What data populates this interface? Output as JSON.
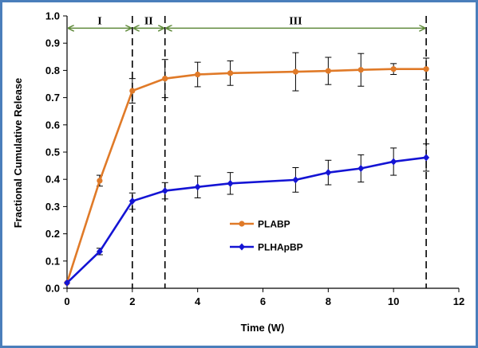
{
  "chart_data": {
    "type": "line",
    "title": "",
    "xlabel": "Time (W)",
    "ylabel": "Fractional Cumulative Release",
    "xlim": [
      0,
      12
    ],
    "ylim": [
      0,
      1.0
    ],
    "x_ticks": [
      "0",
      "2",
      "4",
      "6",
      "8",
      "10",
      "12"
    ],
    "y_ticks": [
      "0.0",
      "0.1",
      "0.2",
      "0.3",
      "0.4",
      "0.5",
      "0.6",
      "0.7",
      "0.8",
      "0.9",
      "1.0"
    ],
    "grid": false,
    "legend_position": "center",
    "series": [
      {
        "name": "PLABP",
        "color": "#e07a28",
        "marker": "circle",
        "x": [
          0,
          1,
          2,
          3,
          4,
          5,
          7,
          8,
          9,
          10,
          11
        ],
        "y": [
          0.02,
          0.395,
          0.725,
          0.77,
          0.785,
          0.79,
          0.795,
          0.798,
          0.802,
          0.805,
          0.805
        ],
        "err": [
          0.0,
          0.02,
          0.045,
          0.07,
          0.045,
          0.045,
          0.07,
          0.05,
          0.06,
          0.02,
          0.04
        ]
      },
      {
        "name": "PLHApBP",
        "color": "#1414d4",
        "marker": "diamond",
        "x": [
          0,
          1,
          2,
          3,
          4,
          5,
          7,
          8,
          9,
          10,
          11
        ],
        "y": [
          0.02,
          0.135,
          0.32,
          0.358,
          0.372,
          0.385,
          0.398,
          0.425,
          0.44,
          0.465,
          0.48
        ],
        "err": [
          0.0,
          0.012,
          0.03,
          0.03,
          0.04,
          0.04,
          0.045,
          0.045,
          0.05,
          0.05,
          0.05
        ]
      }
    ],
    "phase_lines_x": [
      2,
      3,
      11
    ],
    "phases": [
      {
        "label": "I",
        "from": 0,
        "to": 2
      },
      {
        "label": "II",
        "from": 2,
        "to": 3
      },
      {
        "label": "III",
        "from": 3,
        "to": 11
      }
    ],
    "phase_arrow_y": 0.955,
    "phase_arrow_color": "#5f8a3a",
    "axis_color": "#000000"
  }
}
